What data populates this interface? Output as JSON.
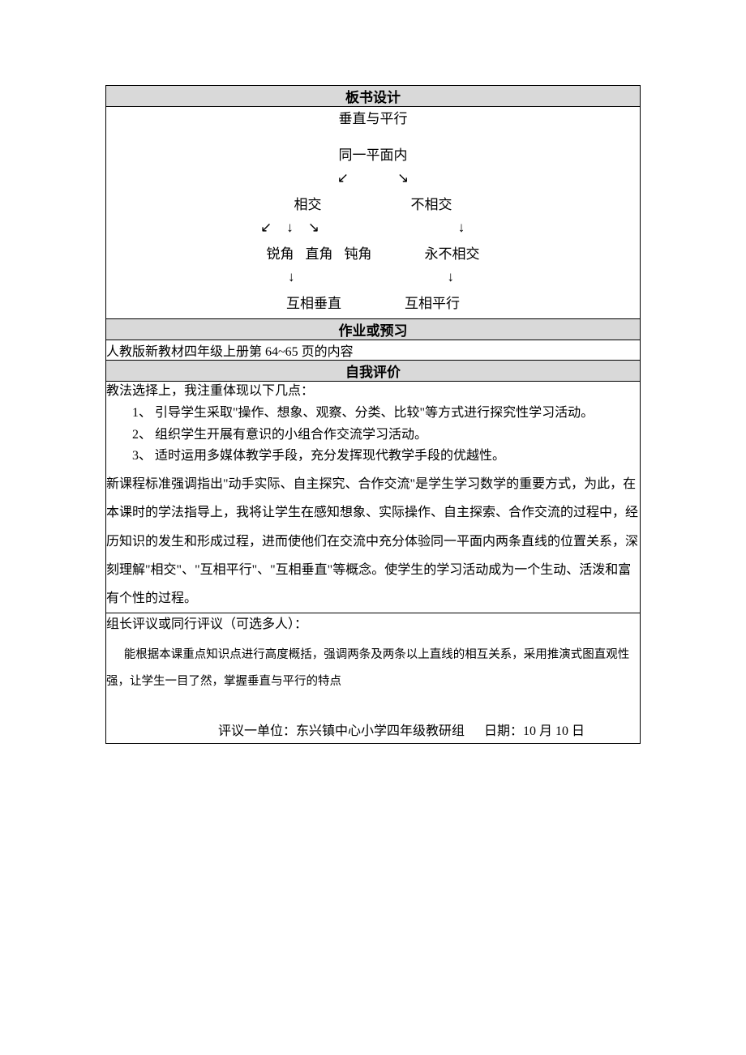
{
  "sections": {
    "board_design": {
      "header": "板书设计",
      "title": "垂直与平行",
      "root": "同一平面内",
      "arrows_l1": {
        "left": "↙",
        "right": "↘"
      },
      "level2": {
        "left": "相交",
        "right": "不相交"
      },
      "arrows_l2_left": {
        "a": "↙",
        "b": "↓",
        "c": "↘"
      },
      "arrows_l2_right": "↓",
      "level3_left": {
        "a": "锐角",
        "b": "直角",
        "c": "钝角"
      },
      "level3_right": "永不相交",
      "arrows_l3_left": "↓",
      "arrows_l3_right": "↓",
      "level4": {
        "left": "互相垂直",
        "right": "互相平行"
      }
    },
    "homework": {
      "header": "作业或预习",
      "content": "人教版新教材四年级上册第 64~65 页的内容"
    },
    "self_eval": {
      "header": "自我评价",
      "intro": "教法选择上，我注重体现以下几点：",
      "items": [
        "1、 引导学生采取\"操作、想象、观察、分类、比较\"等方式进行探究性学习活动。",
        "2、 组织学生开展有意识的小组合作交流学习活动。",
        "3、 适时运用多媒体教学手段，充分发挥现代教学手段的优越性。"
      ],
      "body": "新课程标准强调指出\"动手实际、自主探究、合作交流\"是学生学习数学的重要方式，为此，在本课时的学法指导上，我将让学生在感知想象、实际操作、自主探索、合作交流的过程中，经历知识的发生和形成过程，进而使他们在交流中充分体验同一平面内两条直线的位置关系，深刻理解\"相交\"、\"互相平行\"、\"互相垂直\"等概念。使学生的学习活动成为一个生动、活泼和富有个性的过程。"
    },
    "peer_eval": {
      "title": "组长评议或同行评议（可选多人）：",
      "body": "能根据本课重点知识点进行高度概括，强调两条及两条以上直线的相互关系，采用推演式图直观性强，让学生一目了然，掌握垂直与平行的特点",
      "footer_unit": "评议一单位：东兴镇中心小学四年级教研组",
      "footer_date": "日期：10 月 10 日"
    }
  },
  "colors": {
    "header_bg": "#d9d9d9",
    "border": "#000000",
    "background": "#ffffff",
    "text": "#000000"
  }
}
